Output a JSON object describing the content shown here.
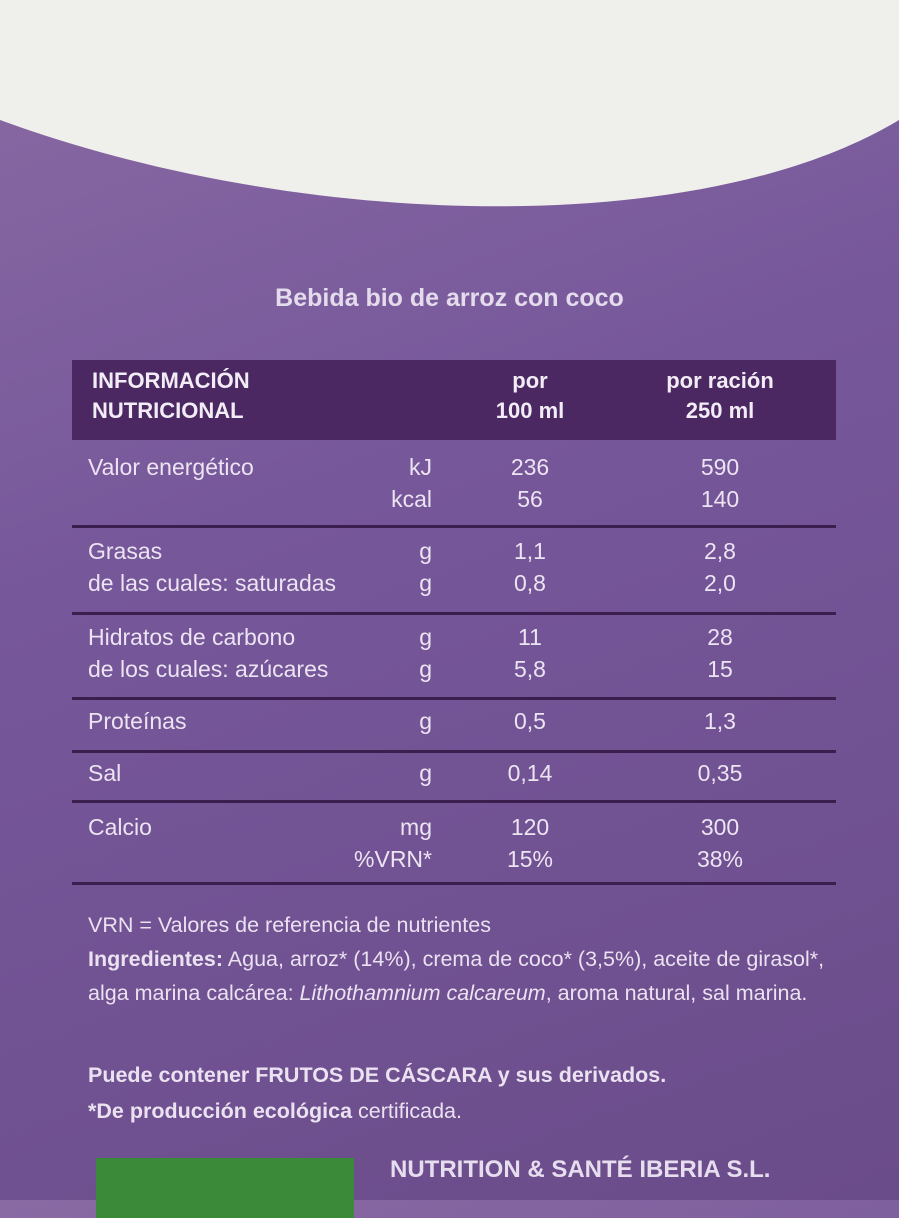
{
  "title": "Bebida bio de arroz con coco",
  "table": {
    "header": [
      [
        "INFORMACIÓN",
        "NUTRICIONAL"
      ],
      [
        "por",
        "100 ml"
      ],
      [
        "por ración",
        "250 ml"
      ]
    ],
    "groups": [
      [
        [
          "Valor energético",
          "kJ",
          "236",
          "590"
        ],
        [
          null,
          "kcal",
          "56",
          "140"
        ]
      ],
      [
        [
          "Grasas",
          "g",
          "1,1",
          "2,8"
        ],
        [
          "de las cuales: saturadas",
          "g",
          "0,8",
          "2,0"
        ]
      ],
      [
        [
          "Hidratos de carbono",
          "g",
          "11",
          "28"
        ],
        [
          "de los cuales: azúcares",
          "g",
          "5,8",
          "15"
        ]
      ],
      [
        [
          "Proteínas",
          "g",
          "0,5",
          "1,3"
        ]
      ],
      [
        [
          "Sal",
          "g",
          "0,14",
          "0,35"
        ]
      ],
      [
        [
          "Calcio",
          "mg",
          "120",
          "300"
        ],
        [
          null,
          "%VRN*",
          "15%",
          "38%"
        ]
      ]
    ]
  },
  "footnotes": {
    "vrn": "VRN = Valores de referencia de nutrientes",
    "ingredients": [
      {
        "text": "Ingredientes:",
        "style": "bold"
      },
      {
        "text": " Agua, arroz* (14%), crema de coco* (3,5%), aceite de girasol*, alga marina calcárea: ",
        "style": "normal"
      },
      {
        "text": "Lithothamnium calcareum",
        "style": "italic"
      },
      {
        "text": ", aroma natural, sal marina.",
        "style": "normal"
      }
    ],
    "allergens": "Puede contener FRUTOS DE CÁSCARA y sus derivados.",
    "organic": [
      {
        "text": "*De producción ecológica",
        "style": "bold"
      },
      {
        "text": " certificada.",
        "style": "normal"
      }
    ]
  },
  "company": "NUTRITION & SANTÉ IBERIA S.L."
}
